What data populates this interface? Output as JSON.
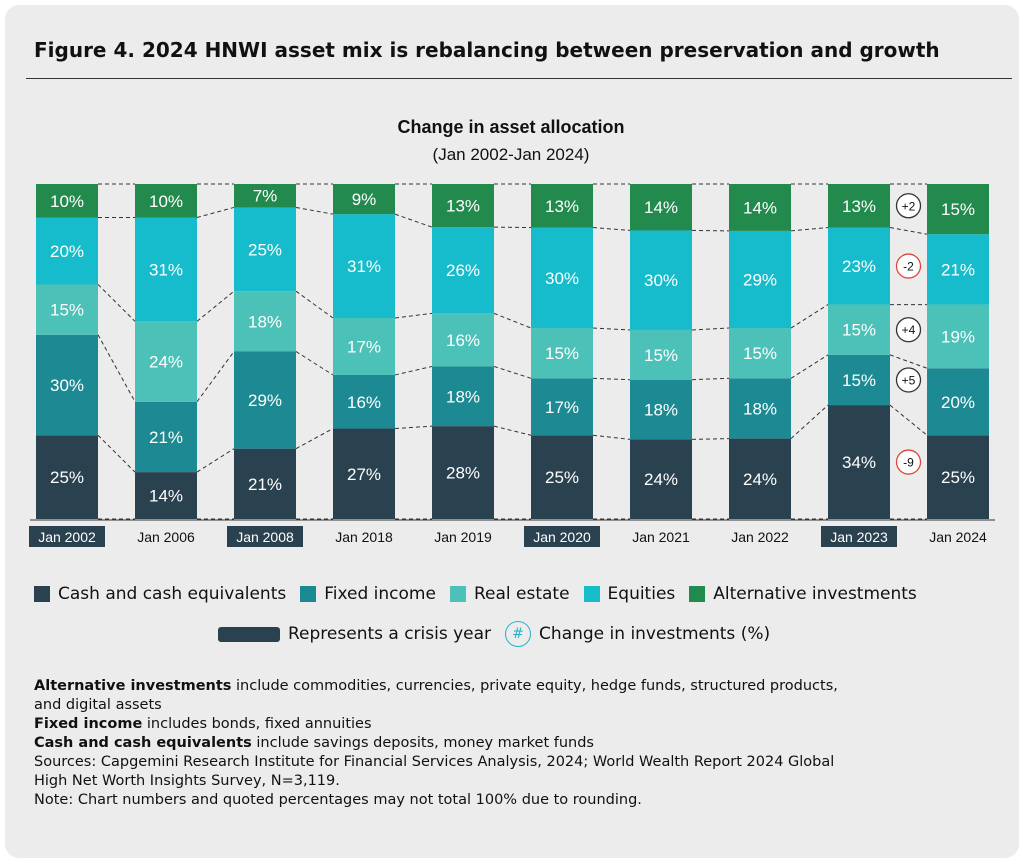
{
  "figure_title": "Figure 4. 2024 HNWI asset mix is rebalancing between preservation and growth",
  "chart_data": {
    "type": "bar",
    "stacked": true,
    "title": "Change in asset allocation",
    "subtitle": "(Jan 2002-Jan 2024)",
    "categories": [
      "Jan 2002",
      "Jan 2006",
      "Jan 2008",
      "Jan 2018",
      "Jan 2019",
      "Jan 2020",
      "Jan 2021",
      "Jan 2022",
      "Jan 2023",
      "Jan 2024"
    ],
    "crisis_years": [
      "Jan 2002",
      "Jan 2008",
      "Jan 2020",
      "Jan 2023"
    ],
    "series": [
      {
        "name": "Cash and cash equivalents",
        "color": "#2a4150",
        "values": [
          25,
          14,
          21,
          27,
          28,
          25,
          24,
          24,
          34,
          25
        ]
      },
      {
        "name": "Fixed income",
        "color": "#1d8a93",
        "values": [
          30,
          21,
          29,
          16,
          18,
          17,
          18,
          18,
          15,
          20
        ]
      },
      {
        "name": "Real estate",
        "color": "#4cc1b8",
        "values": [
          15,
          24,
          18,
          17,
          16,
          15,
          15,
          15,
          15,
          19
        ]
      },
      {
        "name": "Equities",
        "color": "#16bccb",
        "values": [
          20,
          31,
          25,
          31,
          26,
          30,
          30,
          29,
          23,
          21
        ]
      },
      {
        "name": "Alternative investments",
        "color": "#238a4e",
        "values": [
          10,
          10,
          7,
          9,
          13,
          13,
          14,
          14,
          13,
          15
        ]
      }
    ],
    "changes": [
      {
        "series": "Alternative investments",
        "label": "+2"
      },
      {
        "series": "Equities",
        "label": "-2"
      },
      {
        "series": "Real estate",
        "label": "+4"
      },
      {
        "series": "Fixed income",
        "label": "+5"
      },
      {
        "series": "Cash and cash equivalents",
        "label": "-9"
      }
    ],
    "legend_placement": "bottom"
  },
  "legend": {
    "crisis_label": "Represents a crisis year",
    "change_symbol": "#",
    "change_label": "Change in investments (%)"
  },
  "notes": {
    "alt_term": "Alternative investments",
    "alt_text": " include commodities, currencies, private equity, hedge funds, structured products,",
    "alt_text2": "and digital assets",
    "fixed_term": "Fixed income",
    "fixed_text": " includes bonds, fixed annuities",
    "cash_term": "Cash and cash equivalents",
    "cash_text": " include savings deposits, money market funds",
    "sources1": "Sources: Capgemini Research Institute for Financial Services Analysis, 2024; World Wealth Report 2024 Global",
    "sources2": "High Net Worth Insights Survey, N=3,119.",
    "note": "Note: Chart numbers and quoted percentages may not total 100% due to rounding."
  }
}
